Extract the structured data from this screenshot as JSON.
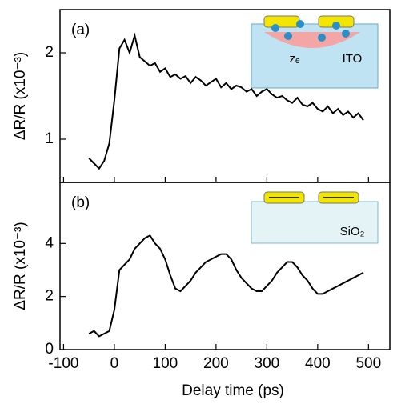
{
  "chart_data": [
    {
      "type": "line",
      "label": "(a)",
      "ylabel": "ΔR/R (x10⁻³)",
      "inset_labels": [
        "zₑ",
        "ITO"
      ],
      "x": [
        -50,
        -40,
        -30,
        -20,
        -10,
        0,
        10,
        20,
        30,
        40,
        50,
        60,
        70,
        80,
        90,
        100,
        110,
        120,
        130,
        140,
        150,
        160,
        170,
        180,
        190,
        200,
        210,
        220,
        230,
        240,
        250,
        260,
        270,
        280,
        290,
        300,
        310,
        320,
        330,
        340,
        350,
        360,
        370,
        380,
        390,
        400,
        410,
        420,
        430,
        440,
        450,
        460,
        470,
        480,
        490
      ],
      "series": [
        {
          "color": "#000000",
          "values": [
            0.78,
            0.72,
            0.66,
            0.75,
            0.95,
            1.45,
            2.05,
            2.15,
            2.0,
            2.2,
            1.95,
            1.9,
            1.85,
            1.88,
            1.78,
            1.82,
            1.72,
            1.75,
            1.7,
            1.73,
            1.65,
            1.72,
            1.68,
            1.62,
            1.66,
            1.7,
            1.6,
            1.65,
            1.58,
            1.62,
            1.6,
            1.55,
            1.58,
            1.5,
            1.55,
            1.58,
            1.52,
            1.48,
            1.5,
            1.45,
            1.42,
            1.48,
            1.4,
            1.38,
            1.42,
            1.35,
            1.32,
            1.38,
            1.3,
            1.35,
            1.28,
            1.32,
            1.25,
            1.3,
            1.22
          ]
        }
      ],
      "xlim": [
        -107,
        542
      ],
      "xticks": [
        -100,
        0,
        100,
        200,
        300,
        400,
        500
      ],
      "ylim": [
        0.5,
        2.5
      ],
      "yticks": [
        1,
        2
      ]
    },
    {
      "type": "line",
      "label": "(b)",
      "ylabel": "ΔR/R (x10⁻³)",
      "xlabel": "Delay time (ps)",
      "inset_labels": [
        "SiO₂"
      ],
      "x": [
        -50,
        -40,
        -30,
        -20,
        -10,
        0,
        10,
        20,
        30,
        40,
        50,
        60,
        70,
        80,
        90,
        100,
        110,
        120,
        130,
        140,
        150,
        160,
        170,
        180,
        190,
        200,
        210,
        220,
        230,
        240,
        250,
        260,
        270,
        280,
        290,
        300,
        310,
        320,
        330,
        340,
        350,
        360,
        370,
        380,
        390,
        400,
        410,
        420,
        430,
        440,
        450,
        460,
        470,
        480,
        490
      ],
      "series": [
        {
          "color": "#000000",
          "values": [
            0.6,
            0.7,
            0.5,
            0.6,
            0.7,
            1.5,
            3.0,
            3.2,
            3.4,
            3.8,
            4.0,
            4.2,
            4.3,
            4.0,
            3.8,
            3.4,
            2.8,
            2.3,
            2.2,
            2.4,
            2.6,
            2.9,
            3.1,
            3.3,
            3.4,
            3.5,
            3.6,
            3.6,
            3.4,
            3.0,
            2.7,
            2.5,
            2.3,
            2.2,
            2.2,
            2.4,
            2.6,
            2.9,
            3.1,
            3.3,
            3.3,
            3.1,
            2.8,
            2.6,
            2.3,
            2.1,
            2.1,
            2.2,
            2.3,
            2.4,
            2.5,
            2.6,
            2.7,
            2.8,
            2.9
          ]
        }
      ],
      "xlim": [
        -107,
        542
      ],
      "xticks": [
        -100,
        0,
        100,
        200,
        300,
        400,
        500
      ],
      "ylim": [
        0,
        6.3
      ],
      "yticks": [
        0,
        2,
        4
      ]
    }
  ]
}
